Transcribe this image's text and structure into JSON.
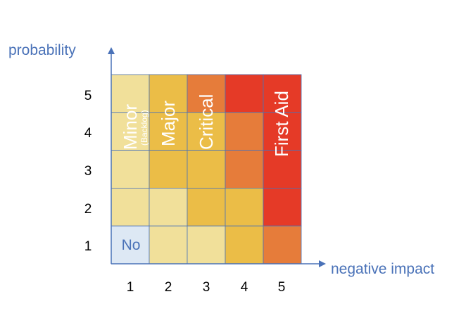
{
  "axes": {
    "y_title": "probability",
    "x_title": "negative impact",
    "x_ticks": [
      "1",
      "2",
      "3",
      "4",
      "5"
    ],
    "y_ticks": [
      "1",
      "2",
      "3",
      "4",
      "5"
    ]
  },
  "colors": {
    "none": "#dde8f4",
    "light": "#f1e09a",
    "yellow": "#ebbd47",
    "orange": "#e67c3a",
    "red": "#e53a27",
    "grid": "#4a72b8",
    "axis": "#4a72b8"
  },
  "matrix": {
    "rows": [
      [
        "light",
        "yellow",
        "orange",
        "red",
        "red"
      ],
      [
        "light",
        "yellow",
        "yellow",
        "orange",
        "red"
      ],
      [
        "light",
        "yellow",
        "yellow",
        "orange",
        "red"
      ],
      [
        "light",
        "light",
        "yellow",
        "yellow",
        "red"
      ],
      [
        "none",
        "light",
        "light",
        "yellow",
        "orange"
      ]
    ]
  },
  "zones": {
    "minor": "Minor",
    "backlog": "(Backlog)",
    "major": "Major",
    "critical": "Critical",
    "first_aid": "First Aid",
    "no": "No"
  }
}
